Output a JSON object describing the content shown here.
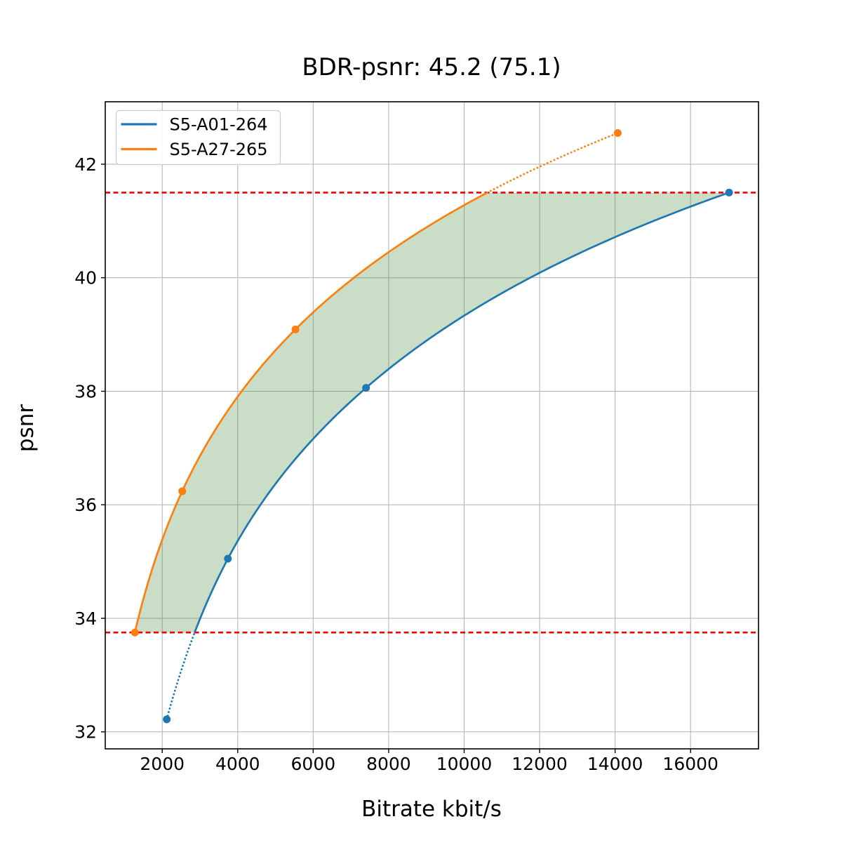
{
  "chart_data": {
    "type": "line",
    "title": "BDR-psnr: 45.2 (75.1)",
    "xlabel": "Bitrate kbit/s",
    "ylabel": "psnr",
    "xlim": [
      490,
      17800
    ],
    "ylim": [
      31.7,
      43.1
    ],
    "xticks": [
      2000,
      4000,
      6000,
      8000,
      10000,
      12000,
      14000,
      16000
    ],
    "yticks": [
      32,
      34,
      36,
      38,
      40,
      42
    ],
    "grid": true,
    "grid_color": "#b0b0b0",
    "spine_color": "#000000",
    "legend_position": "upper-left",
    "series": [
      {
        "name": "S5-A01-264",
        "color": "#1f77b4",
        "marker": "circle",
        "points": [
          [
            2120,
            32.22
          ],
          [
            3740,
            35.05
          ],
          [
            7400,
            38.06
          ],
          [
            17020,
            41.5
          ]
        ],
        "dotted_below_psnr": 33.75
      },
      {
        "name": "S5-A27-265",
        "color": "#ff7f0e",
        "marker": "circle",
        "points": [
          [
            1275,
            33.75
          ],
          [
            2530,
            36.24
          ],
          [
            5530,
            39.09
          ],
          [
            14070,
            42.55
          ]
        ],
        "dotted_above_psnr": 41.5
      }
    ],
    "hlines": [
      {
        "y": 33.75,
        "color": "#f10000",
        "style": "dashed"
      },
      {
        "y": 41.5,
        "color": "#f10000",
        "style": "dashed"
      }
    ],
    "shaded_region": {
      "between": [
        "S5-A27-265",
        "S5-A01-264"
      ],
      "y_range": [
        33.75,
        41.5
      ],
      "color": "#4e8e41",
      "opacity": 0.3
    }
  }
}
